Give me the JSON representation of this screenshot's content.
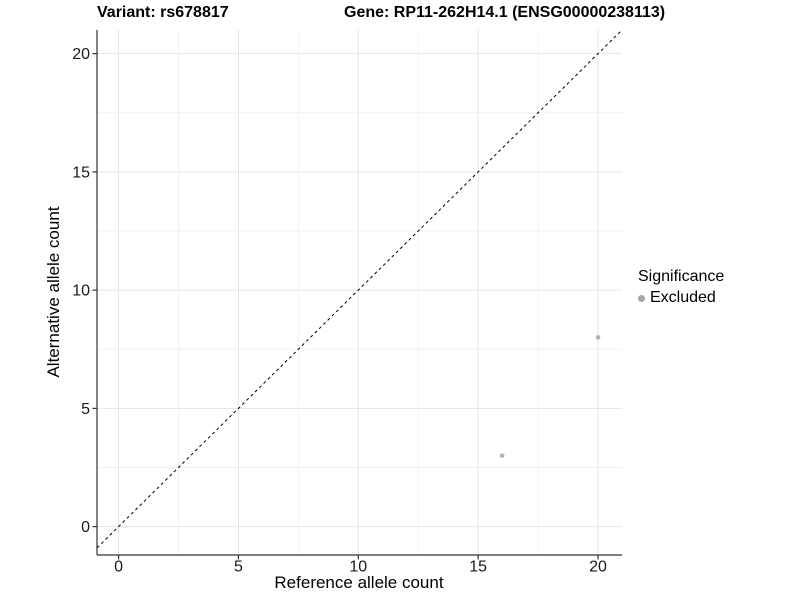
{
  "header": {
    "variant_title": "Variant: rs678817",
    "gene_title": "Gene: RP11-262H14.1 (ENSG00000238113)"
  },
  "chart_data": {
    "type": "scatter",
    "title_left": "Variant: rs678817",
    "title_right": "Gene: RP11-262H14.1 (ENSG00000238113)",
    "xlabel": "Reference allele count",
    "ylabel": "Alternative allele count",
    "xlim": [
      -0.9,
      21
    ],
    "ylim": [
      -1.2,
      21
    ],
    "xticks": [
      0,
      5,
      10,
      15,
      20
    ],
    "yticks": [
      0,
      5,
      10,
      15,
      20
    ],
    "minor_grid_step": 2.5,
    "grid": "on",
    "points": [
      {
        "x": 16,
        "y": 3,
        "series": "Excluded"
      },
      {
        "x": 20,
        "y": 8,
        "series": "Excluded"
      }
    ],
    "identity_line": {
      "slope": 1,
      "intercept": 0,
      "style": "dashed",
      "color": "#000000"
    },
    "legend": {
      "title": "Significance",
      "position": "right",
      "entries": [
        {
          "label": "Excluded",
          "marker": "circle",
          "color": "#a6a6a6"
        }
      ]
    },
    "colors": {
      "point": "#b3b3b3",
      "grid_major": "#e5e5e5",
      "grid_minor": "#f2f2f2",
      "axis": "#333333",
      "tick_label": "#1a1a1a",
      "background": "#ffffff"
    }
  }
}
